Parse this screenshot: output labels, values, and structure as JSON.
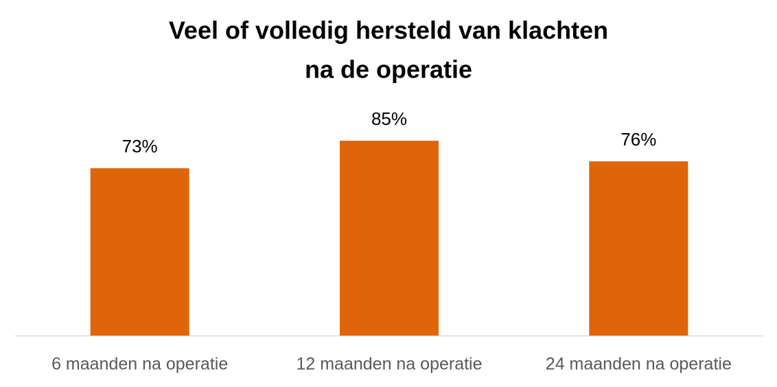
{
  "chart_data": {
    "type": "bar",
    "title": [
      "Veel of volledig hersteld van klachten",
      "na de operatie"
    ],
    "categories": [
      "6 maanden na operatie",
      "12 maanden na operatie",
      "24 maanden na operatie"
    ],
    "values": [
      73,
      85,
      76
    ],
    "value_labels": [
      "73%",
      "85%",
      "76%"
    ],
    "color": "#e0640a"
  }
}
